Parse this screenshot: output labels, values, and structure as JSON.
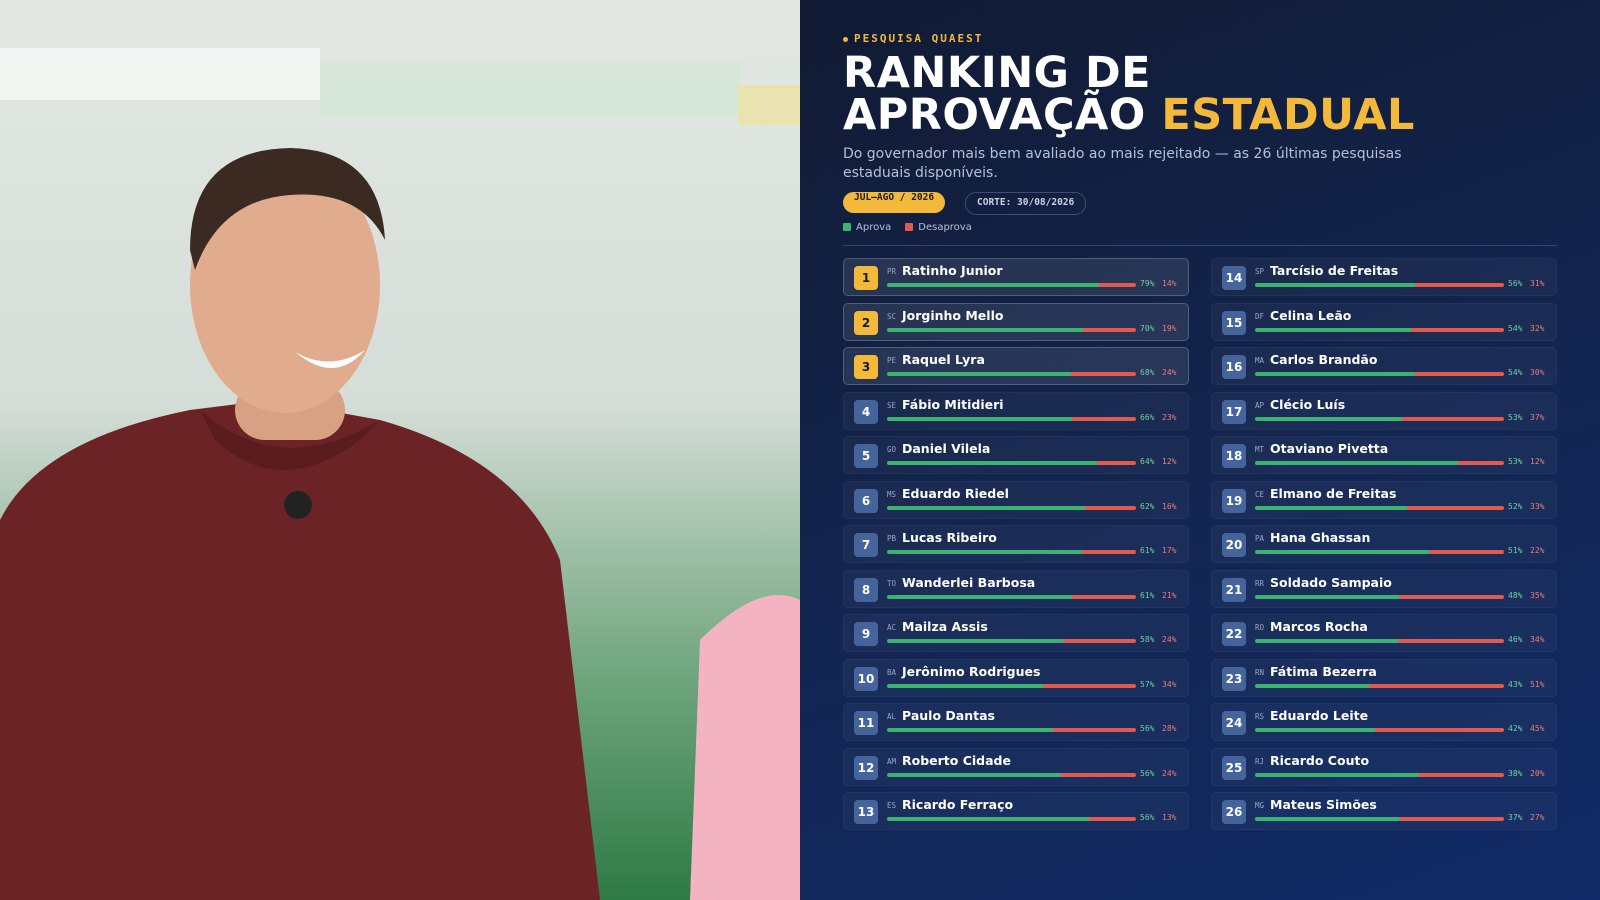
{
  "header": {
    "kicker": "PESQUISA QUAEST",
    "title_line1": "RANKING DE",
    "title_line2": "APROVAÇÃO",
    "title_highlight": "ESTADUAL",
    "subtitle": "Do governador mais bem avaliado ao mais rejeitado — as 26 últimas pesquisas estaduais disponíveis.",
    "period": "JUL–AGO / 2026",
    "cutoff": "CORTE: 30/08/2026"
  },
  "legend": {
    "approve": "Aprova",
    "disapprove": "Desaprova"
  },
  "rows": [
    {
      "rank": 1,
      "state": "PR",
      "name": "Ratinho Junior",
      "approve": 79,
      "approve_label": "79%",
      "disapprove": 14,
      "disapprove_label": "14%"
    },
    {
      "rank": 2,
      "state": "SC",
      "name": "Jorginho Mello",
      "approve": 70,
      "approve_label": "70%",
      "disapprove": 19,
      "disapprove_label": "19%"
    },
    {
      "rank": 3,
      "state": "PE",
      "name": "Raquel Lyra",
      "approve": 68,
      "approve_label": "68%",
      "disapprove": 24,
      "disapprove_label": "24%"
    },
    {
      "rank": 4,
      "state": "SE",
      "name": "Fábio Mitidieri",
      "approve": 66,
      "approve_label": "66%",
      "disapprove": 23,
      "disapprove_label": "23%"
    },
    {
      "rank": 5,
      "state": "GO",
      "name": "Daniel Vilela",
      "approve": 64,
      "approve_label": "64%",
      "disapprove": 12,
      "disapprove_label": "12%"
    },
    {
      "rank": 6,
      "state": "MS",
      "name": "Eduardo Riedel",
      "approve": 62,
      "approve_label": "62%",
      "disapprove": 16,
      "disapprove_label": "16%"
    },
    {
      "rank": 7,
      "state": "PB",
      "name": "Lucas Ribeiro",
      "approve": 61,
      "approve_label": "61%",
      "disapprove": 17,
      "disapprove_label": "17%"
    },
    {
      "rank": 8,
      "state": "TO",
      "name": "Wanderlei Barbosa",
      "approve": 61,
      "approve_label": "61%",
      "disapprove": 21,
      "disapprove_label": "21%"
    },
    {
      "rank": 9,
      "state": "AC",
      "name": "Mailza Assis",
      "approve": 58,
      "approve_label": "58%",
      "disapprove": 24,
      "disapprove_label": "24%"
    },
    {
      "rank": 10,
      "state": "BA",
      "name": "Jerônimo Rodrigues",
      "approve": 57,
      "approve_label": "57%",
      "disapprove": 34,
      "disapprove_label": "34%"
    },
    {
      "rank": 11,
      "state": "AL",
      "name": "Paulo Dantas",
      "approve": 56,
      "approve_label": "56%",
      "disapprove": 28,
      "disapprove_label": "28%"
    },
    {
      "rank": 12,
      "state": "AM",
      "name": "Roberto Cidade",
      "approve": 56,
      "approve_label": "56%",
      "disapprove": 24,
      "disapprove_label": "24%"
    },
    {
      "rank": 13,
      "state": "ES",
      "name": "Ricardo Ferraço",
      "approve": 56,
      "approve_label": "56%",
      "disapprove": 13,
      "disapprove_label": "13%"
    },
    {
      "rank": 14,
      "state": "SP",
      "name": "Tarcísio de Freitas",
      "approve": 56,
      "approve_label": "56%",
      "disapprove": 31,
      "disapprove_label": "31%"
    },
    {
      "rank": 15,
      "state": "DF",
      "name": "Celina Leão",
      "approve": 54,
      "approve_label": "54%",
      "disapprove": 32,
      "disapprove_label": "32%"
    },
    {
      "rank": 16,
      "state": "MA",
      "name": "Carlos Brandão",
      "approve": 54,
      "approve_label": "54%",
      "disapprove": 30,
      "disapprove_label": "30%"
    },
    {
      "rank": 17,
      "state": "AP",
      "name": "Clécio Luís",
      "approve": 53,
      "approve_label": "53%",
      "disapprove": 37,
      "disapprove_label": "37%"
    },
    {
      "rank": 18,
      "state": "MT",
      "name": "Otaviano Pivetta",
      "approve": 53,
      "approve_label": "53%",
      "disapprove": 12,
      "disapprove_label": "12%"
    },
    {
      "rank": 19,
      "state": "CE",
      "name": "Elmano de Freitas",
      "approve": 52,
      "approve_label": "52%",
      "disapprove": 33,
      "disapprove_label": "33%"
    },
    {
      "rank": 20,
      "state": "PA",
      "name": "Hana Ghassan",
      "approve": 51,
      "approve_label": "51%",
      "disapprove": 22,
      "disapprove_label": "22%"
    },
    {
      "rank": 21,
      "state": "RR",
      "name": "Soldado Sampaio",
      "approve": 48,
      "approve_label": "48%",
      "disapprove": 35,
      "disapprove_label": "35%"
    },
    {
      "rank": 22,
      "state": "RO",
      "name": "Marcos Rocha",
      "approve": 46,
      "approve_label": "46%",
      "disapprove": 34,
      "disapprove_label": "34%"
    },
    {
      "rank": 23,
      "state": "RN",
      "name": "Fátima Bezerra",
      "approve": 43,
      "approve_label": "43%",
      "disapprove": 51,
      "disapprove_label": "51%"
    },
    {
      "rank": 24,
      "state": "RS",
      "name": "Eduardo Leite",
      "approve": 42,
      "approve_label": "42%",
      "disapprove": 45,
      "disapprove_label": "45%"
    },
    {
      "rank": 25,
      "state": "RJ",
      "name": "Ricardo Couto",
      "approve": 38,
      "approve_label": "38%",
      "disapprove": 20,
      "disapprove_label": "20%"
    },
    {
      "rank": 26,
      "state": "MG",
      "name": "Mateus Simões",
      "approve": 37,
      "approve_label": "37%",
      "disapprove": 27,
      "disapprove_label": "27%"
    }
  ]
}
